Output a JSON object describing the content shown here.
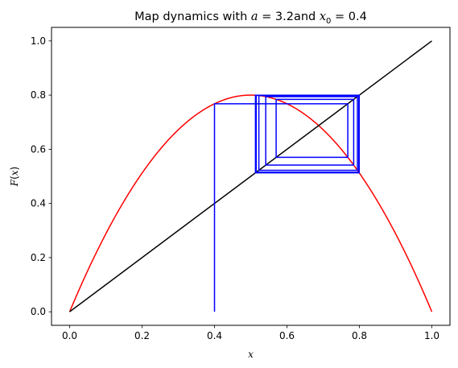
{
  "chart_data": {
    "type": "line",
    "title": {
      "prefix": "Map dynamics with ",
      "a_symbol": "a",
      "a_part": " = 3.2and ",
      "x0_symbol": "x",
      "x0_subscript": "0",
      "x0_part": " = 0.4"
    },
    "xlabel": "x",
    "ylabel": {
      "func": "F",
      "open": "(",
      "var": "x",
      "close": ")"
    },
    "xlim": [
      -0.05,
      1.05
    ],
    "ylim": [
      -0.05,
      1.05
    ],
    "xticks": [
      "0.0",
      "0.2",
      "0.4",
      "0.6",
      "0.8",
      "1.0"
    ],
    "yticks": [
      "0.0",
      "0.2",
      "0.4",
      "0.6",
      "0.8",
      "1.0"
    ],
    "parameter_a": 3.2,
    "x0": 0.4,
    "grid": false,
    "series": [
      {
        "kind": "map-curve",
        "function": "a*x*(1-x)",
        "domain": [
          0,
          1
        ],
        "color": "#ff0000"
      },
      {
        "kind": "identity-line",
        "x": [
          0,
          1
        ],
        "y": [
          0,
          1
        ],
        "color": "#000000"
      },
      {
        "kind": "cobweb",
        "start_x": 0.4,
        "iterations": 30,
        "color": "#0000ff"
      }
    ]
  },
  "colors": {
    "background": "#ffffff",
    "axes": "#000000",
    "curve": "#ff0000",
    "diagonal": "#000000",
    "cobweb": "#0000ff"
  }
}
